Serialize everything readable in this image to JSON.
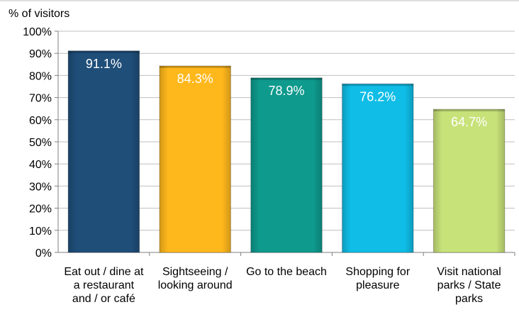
{
  "chart_data": {
    "type": "bar",
    "ylabel": "% of visitors",
    "ylim": [
      0,
      100
    ],
    "yticks": [
      "0%",
      "10%",
      "20%",
      "30%",
      "40%",
      "50%",
      "60%",
      "70%",
      "80%",
      "90%",
      "100%"
    ],
    "categories": [
      [
        "Eat out / dine at",
        "a restaurant",
        "and / or café"
      ],
      [
        "Sightseeing /",
        "looking around"
      ],
      [
        "Go to the beach"
      ],
      [
        "Shopping for",
        "pleasure"
      ],
      [
        "Visit national",
        "parks / State",
        "parks"
      ]
    ],
    "values": [
      91.1,
      84.3,
      78.9,
      76.2,
      64.7
    ],
    "value_labels": [
      "91.1%",
      "84.3%",
      "78.9%",
      "76.2%",
      "64.7%"
    ],
    "colors": [
      "#1f4e79",
      "#ffb81c",
      "#0e9a8d",
      "#0fbde6",
      "#c8e27a"
    ],
    "grid": true,
    "legend": "none"
  }
}
